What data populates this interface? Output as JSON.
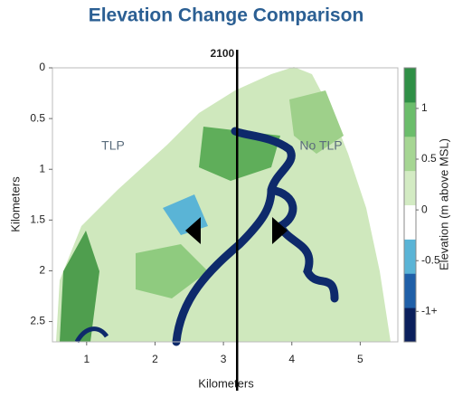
{
  "chart_data": {
    "type": "map",
    "title": "Elevation Change Comparison",
    "x_label": "Kilometers",
    "y_label": "Kilometers",
    "xlim": [
      0.5,
      5.55
    ],
    "xticks": [
      1,
      2,
      3,
      4,
      5
    ],
    "ylim": [
      0,
      2.7
    ],
    "yticks": [
      0,
      0.5,
      1,
      1.5,
      2,
      2.5
    ],
    "y_inverted": true,
    "annotations": [
      "TLP",
      "No TLP"
    ],
    "divider": {
      "label": "2100",
      "x": 3.2
    },
    "colorbar": {
      "label": "Elevation (m above MSL)",
      "lim": [
        -1.3,
        1.4
      ],
      "ticks": [
        {
          "value": -1,
          "label": "-1+"
        },
        -0.5,
        0,
        0.5,
        1
      ],
      "colors": [
        "#0a1f5c",
        "#1f5fa8",
        "#5ab4d6",
        "#ffffff",
        "#d3ebc3",
        "#a6d693",
        "#6bbd6b",
        "#2f8f46"
      ]
    }
  }
}
